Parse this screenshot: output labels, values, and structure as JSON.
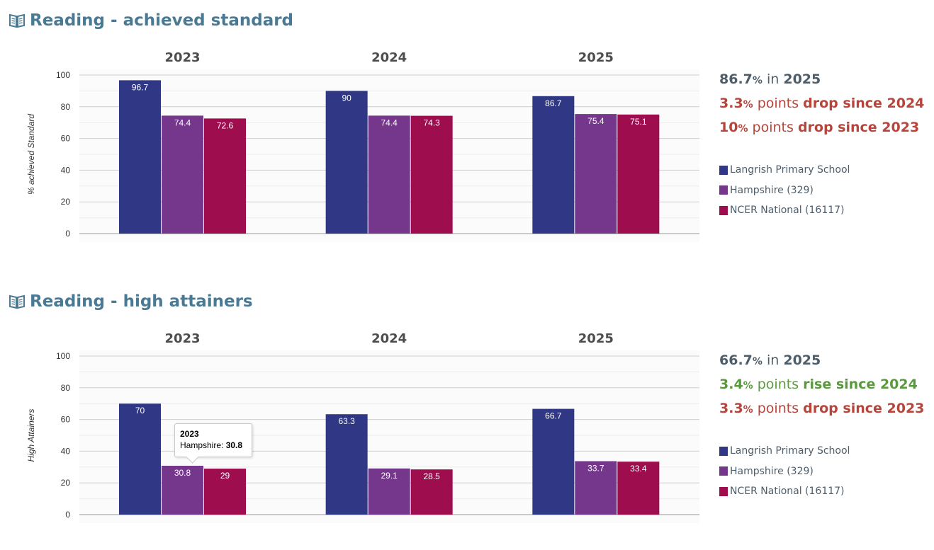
{
  "sections": [
    {
      "title": "Reading - achieved standard",
      "stats": {
        "headline": {
          "value": "86.7",
          "pct": "%",
          "word": "in",
          "year": "2025"
        },
        "lines": [
          {
            "value": "3.3",
            "pct": "%",
            "text": "points",
            "bold": "drop since 2024",
            "trend": "drop"
          },
          {
            "value": "10",
            "pct": "%",
            "text": "points",
            "bold": "drop since 2023",
            "trend": "drop"
          }
        ]
      },
      "legend": [
        {
          "label": "Langrish Primary School",
          "color": "#303785"
        },
        {
          "label": "Hampshire (329)",
          "color": "#75378c"
        },
        {
          "label": "NCER National (16117)",
          "color": "#9e0e4f"
        }
      ]
    },
    {
      "title": "Reading - high attainers",
      "stats": {
        "headline": {
          "value": "66.7",
          "pct": "%",
          "word": "in",
          "year": "2025"
        },
        "lines": [
          {
            "value": "3.4",
            "pct": "%",
            "text": "points",
            "bold": "rise since 2024",
            "trend": "rise"
          },
          {
            "value": "3.3",
            "pct": "%",
            "text": "points",
            "bold": "drop since 2023",
            "trend": "drop"
          }
        ]
      },
      "legend": [
        {
          "label": "Langrish Primary School",
          "color": "#303785"
        },
        {
          "label": "Hampshire (329)",
          "color": "#75378c"
        },
        {
          "label": "NCER National (16117)",
          "color": "#9e0e4f"
        }
      ],
      "tooltip": {
        "year": "2023",
        "series": "Hampshire",
        "value": "30.8"
      }
    }
  ],
  "chart_data": [
    {
      "type": "bar",
      "categories": [
        "2023",
        "2024",
        "2025"
      ],
      "series": [
        {
          "name": "Langrish Primary School",
          "values": [
            96.7,
            90,
            86.7
          ],
          "color": "#303785"
        },
        {
          "name": "Hampshire (329)",
          "values": [
            74.4,
            74.4,
            75.4
          ],
          "color": "#75378c"
        },
        {
          "name": "NCER National (16117)",
          "values": [
            72.6,
            74.3,
            75.1
          ],
          "color": "#9e0e4f"
        }
      ],
      "ylabel": "% achieved Standard",
      "ylim": [
        0,
        100
      ],
      "yticks": [
        0,
        20,
        40,
        60,
        80,
        100
      ],
      "grid": true,
      "legend": "right"
    },
    {
      "type": "bar",
      "categories": [
        "2023",
        "2024",
        "2025"
      ],
      "series": [
        {
          "name": "Langrish Primary School",
          "values": [
            70,
            63.3,
            66.7
          ],
          "color": "#303785"
        },
        {
          "name": "Hampshire (329)",
          "values": [
            30.8,
            29.1,
            33.7
          ],
          "color": "#75378c"
        },
        {
          "name": "NCER National (16117)",
          "values": [
            29,
            28.5,
            33.4
          ],
          "color": "#9e0e4f"
        }
      ],
      "ylabel": "High Attainers",
      "ylim": [
        0,
        100
      ],
      "yticks": [
        0,
        20,
        40,
        60,
        80,
        100
      ],
      "grid": true,
      "legend": "right"
    }
  ]
}
